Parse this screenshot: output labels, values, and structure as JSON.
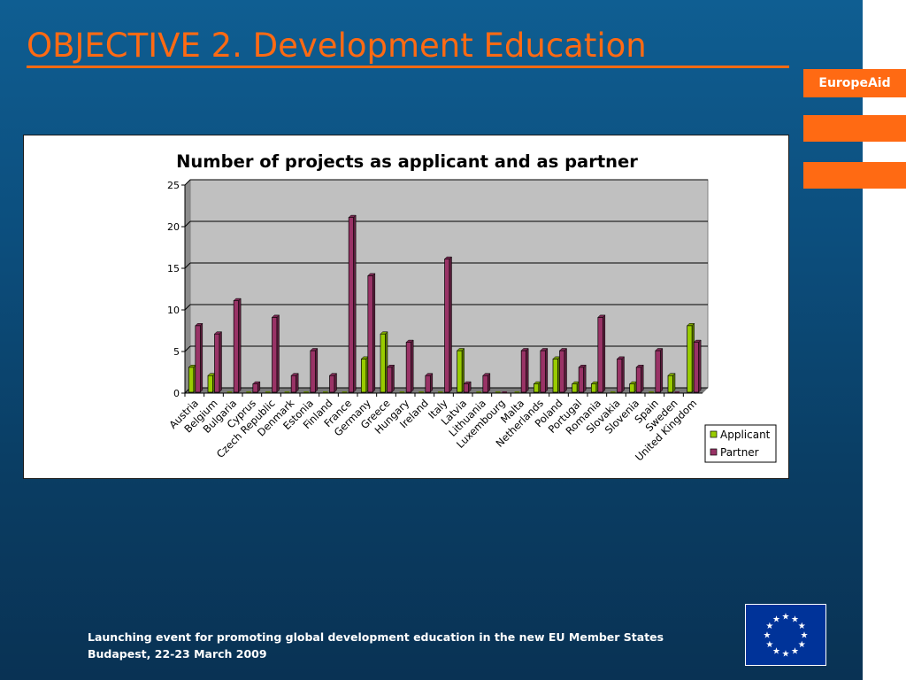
{
  "slide": {
    "title": "OBJECTIVE 2. Development Education",
    "brand": "EuropeAid",
    "footer": {
      "line1": "Launching event for promoting global development education in the new EU Member States",
      "line2": "Budapest, 22-23 March 2009"
    },
    "colors": {
      "accent": "#ff6a13",
      "background": "#0c4e7d"
    }
  },
  "chart_data": {
    "type": "bar",
    "title": "Number of projects as applicant and as partner",
    "xlabel": "",
    "ylabel": "",
    "ylim": [
      0,
      25
    ],
    "yticks": [
      0,
      5,
      10,
      15,
      20,
      25
    ],
    "grid": true,
    "legend_position": "bottom-right",
    "categories": [
      "Austria",
      "Belgium",
      "Bulgaria",
      "Cyprus",
      "Czech Republic",
      "Denmark",
      "Estonia",
      "Finland",
      "France",
      "Germany",
      "Greece",
      "Hungary",
      "Ireland",
      "Italy",
      "Latvia",
      "Lithuania",
      "Luxembourg",
      "Malta",
      "Netherlands",
      "Poland",
      "Portugal",
      "Romania",
      "Slovakia",
      "Slovenia",
      "Spain",
      "Sweden",
      "United Kingdom"
    ],
    "series": [
      {
        "name": "Applicant",
        "color": "#99cc00",
        "values": [
          3,
          2,
          0,
          0,
          0,
          0,
          0,
          0,
          0,
          4,
          7,
          0,
          0,
          0,
          5,
          0,
          0,
          0,
          1,
          4,
          1,
          1,
          0,
          1,
          0,
          2,
          8
        ]
      },
      {
        "name": "Partner",
        "color": "#993366",
        "values": [
          8,
          7,
          11,
          1,
          9,
          2,
          5,
          2,
          21,
          14,
          3,
          6,
          2,
          16,
          1,
          2,
          0,
          5,
          5,
          5,
          3,
          9,
          4,
          3,
          5,
          0,
          6
        ]
      }
    ]
  }
}
